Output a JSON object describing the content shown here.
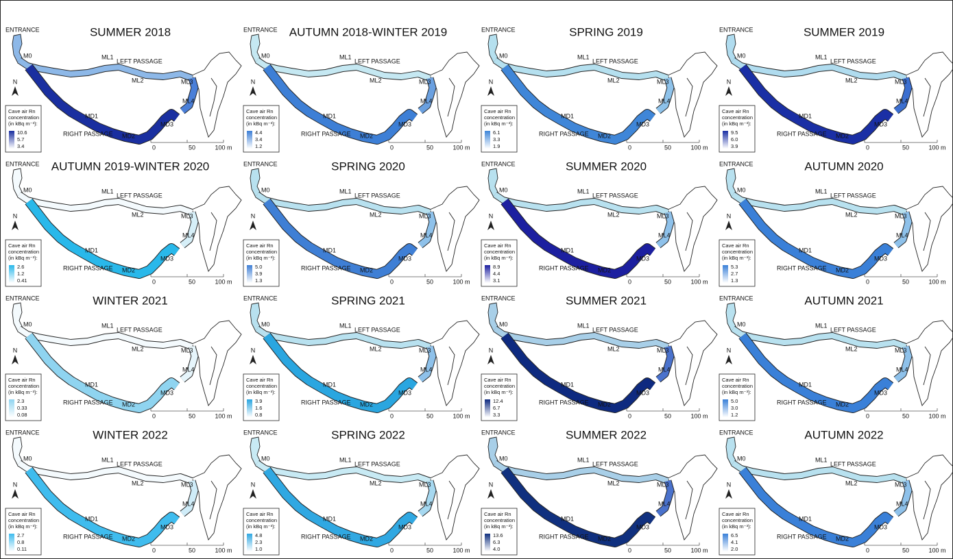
{
  "labels": {
    "entrance": "ENTRANCE",
    "m0": "M0",
    "ml1": "ML1",
    "left_passage": "LEFT PASSAGE",
    "ml2": "ML2",
    "ml3": "ML3",
    "ml4": "ML4",
    "md1": "MD1",
    "md2": "MD2",
    "md3": "MD3",
    "right_passage": "RIGHT PASSAGE",
    "north": "N",
    "legend_title": [
      "Cave air Rn",
      "concentration",
      "(in kBq m⁻³):"
    ],
    "scale": [
      "0",
      "50",
      "100 m"
    ]
  },
  "panels": [
    {
      "title": "SUMMER 2018",
      "legend": [
        "10.6",
        "5.7",
        "3.4"
      ],
      "colors": {
        "left": "#8db8e8",
        "right": "#1a2fa0",
        "ml4": "#4a7fd8"
      }
    },
    {
      "title": "AUTUMN 2018-WINTER 2019",
      "legend": [
        "4.4",
        "3.4",
        "1.2"
      ],
      "colors": {
        "left": "#c5e8f2",
        "right": "#3d7fd6",
        "ml4": "#6aa0e0"
      }
    },
    {
      "title": "SPRING 2019",
      "legend": [
        "6.1",
        "3.3",
        "1.9"
      ],
      "colors": {
        "left": "#b5e0ef",
        "right": "#3f86d8",
        "ml4": "#8ec2ea"
      }
    },
    {
      "title": "SUMMER 2019",
      "legend": [
        "9.5",
        "6.0",
        "3.9"
      ],
      "colors": {
        "left": "#b0dcef",
        "right": "#1a2fa5",
        "ml4": "#3c6fd0"
      }
    },
    {
      "title": "AUTUMN 2019-WINTER 2020",
      "legend": [
        "2.6",
        "1.2",
        "0.41"
      ],
      "colors": {
        "left": "#f4fafd",
        "right": "#29b8ea",
        "ml4": "#d6eff8"
      }
    },
    {
      "title": "SPRING 2020",
      "legend": [
        "5.0",
        "3.9",
        "1.3"
      ],
      "colors": {
        "left": "#b8e1ef",
        "right": "#3f7fd5",
        "ml4": "#8ec1ea"
      }
    },
    {
      "title": "SUMMER 2020",
      "legend": [
        "8.9",
        "4.4",
        "3.1"
      ],
      "colors": {
        "left": "#b8e1ef",
        "right": "#1c1fa0",
        "ml4": "#8ec1ea"
      }
    },
    {
      "title": "AUTUMN 2020",
      "legend": [
        "5.3",
        "2.7",
        "1.3"
      ],
      "colors": {
        "left": "#b8e1ef",
        "right": "#3a80d8",
        "ml4": "#8ec1ea"
      }
    },
    {
      "title": "WINTER 2021",
      "legend": [
        "2.3",
        "0.33",
        "0.08"
      ],
      "colors": {
        "left": "#f4fafd",
        "right": "#8fd4f0",
        "ml4": "#e6f5fb"
      }
    },
    {
      "title": "SPRING 2021",
      "legend": [
        "3.9",
        "1.6",
        "0.8"
      ],
      "colors": {
        "left": "#b8e1ef",
        "right": "#2aa6e0",
        "ml4": "#8ec1ea"
      }
    },
    {
      "title": "SUMMER 2021",
      "legend": [
        "12.4",
        "6.7",
        "3.3"
      ],
      "colors": {
        "left": "#a8cfe8",
        "right": "#0e2a80",
        "ml4": "#4a72cc"
      }
    },
    {
      "title": "AUTUMN 2021",
      "legend": [
        "5.0",
        "3.0",
        "1.2"
      ],
      "colors": {
        "left": "#b8e1ef",
        "right": "#3a80d8",
        "ml4": "#8ec1ea"
      }
    },
    {
      "title": "WINTER 2022",
      "legend": [
        "2.7",
        "0.8",
        "0.11"
      ],
      "colors": {
        "left": "#f4fafd",
        "right": "#3fbcee",
        "ml4": "#cfecf8"
      }
    },
    {
      "title": "SPRING 2022",
      "legend": [
        "4.8",
        "2.3",
        "1.0"
      ],
      "colors": {
        "left": "#c8eaf4",
        "right": "#30a8e2",
        "ml4": "#a6d8f0"
      }
    },
    {
      "title": "SUMMER 2022",
      "legend": [
        "13.6",
        "6.3",
        "4.0"
      ],
      "colors": {
        "left": "#a8cfe8",
        "right": "#10307f",
        "ml4": "#4a72cc"
      }
    },
    {
      "title": "AUTUMN 2022",
      "legend": [
        "6.5",
        "4.1",
        "2.0"
      ],
      "colors": {
        "left": "#b8e1ef",
        "right": "#3a80d8",
        "ml4": "#8ec1ea"
      }
    }
  ]
}
